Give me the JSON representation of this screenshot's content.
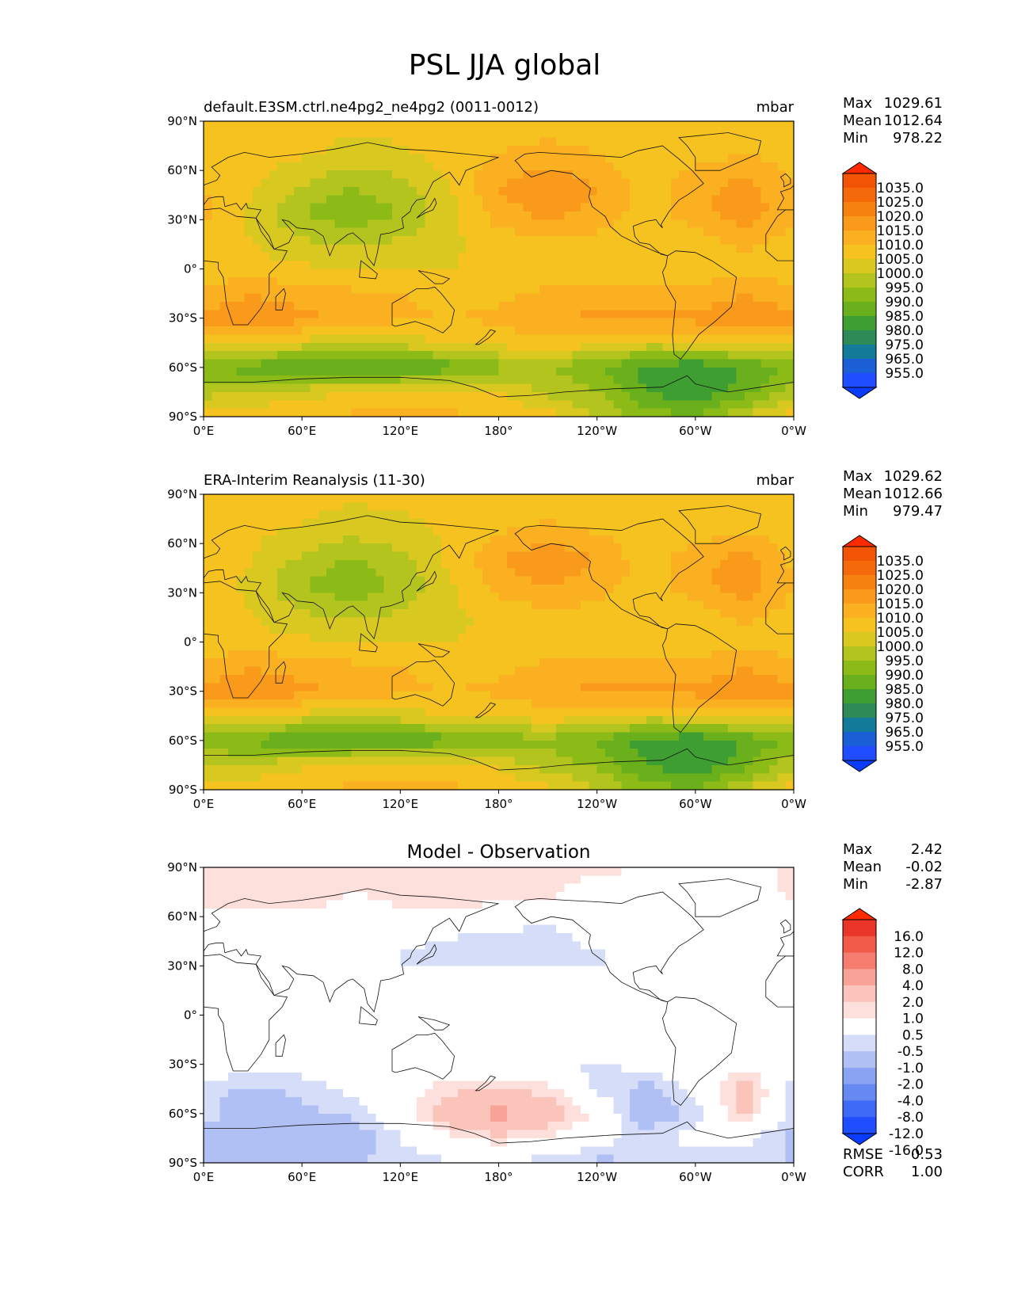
{
  "title": "PSL JJA global",
  "colors": {
    "field_levels": [
      "#1f4dff",
      "#1a5fd6",
      "#147a9a",
      "#2e8a56",
      "#3f9e32",
      "#6aaf1c",
      "#8cbb18",
      "#b3c41e",
      "#d8c820",
      "#f5c21f",
      "#fbb021",
      "#f99a1a",
      "#f7810f",
      "#f46a0b",
      "#f25406"
    ],
    "field_extend_low": "#0a3cff",
    "field_extend_high": "#ff2a00",
    "diff_levels": [
      "#1f4dff",
      "#3f6af7",
      "#6588f1",
      "#8aa3f3",
      "#b0c0f5",
      "#d5ddf8",
      "#ffffff",
      "#fde0dc",
      "#fbc4bb",
      "#f8a398",
      "#f47d70",
      "#f05a49",
      "#e9352a"
    ],
    "diff_extend_low": "#0a3cff",
    "diff_extend_high": "#ff2a00",
    "coastline": "#111111"
  },
  "axes": {
    "lat_ticks": [
      "90°N",
      "60°N",
      "30°N",
      "0°",
      "30°S",
      "60°S",
      "90°S"
    ],
    "lon_ticks": [
      "0°E",
      "60°E",
      "120°E",
      "180°",
      "120°W",
      "60°W",
      "0°W"
    ]
  },
  "panels": [
    {
      "id": "model",
      "title_left": "default.E3SM.ctrl.ne4pg2_ne4pg2 (0011-0012)",
      "title_center": "",
      "units": "mbar",
      "stats": [
        {
          "label": "Max",
          "value": "1029.61"
        },
        {
          "label": "Mean",
          "value": "1012.64"
        },
        {
          "label": "Min",
          "value": "978.22"
        }
      ],
      "colorbar_labels": [
        "1035.0",
        "1025.0",
        "1020.0",
        "1015.0",
        "1010.0",
        "1005.0",
        "1000.0",
        "995.0",
        "990.0",
        "985.0",
        "980.0",
        "975.0",
        "965.0",
        "955.0"
      ],
      "extra_stats": []
    },
    {
      "id": "obs",
      "title_left": "ERA-Interim Reanalysis (11-30)",
      "title_center": "",
      "units": "mbar",
      "stats": [
        {
          "label": "Max",
          "value": "1029.62"
        },
        {
          "label": "Mean",
          "value": "1012.66"
        },
        {
          "label": "Min",
          "value": "979.47"
        }
      ],
      "colorbar_labels": [
        "1035.0",
        "1025.0",
        "1020.0",
        "1015.0",
        "1010.0",
        "1005.0",
        "1000.0",
        "995.0",
        "990.0",
        "985.0",
        "980.0",
        "975.0",
        "965.0",
        "955.0"
      ],
      "extra_stats": []
    },
    {
      "id": "diff",
      "title_left": "",
      "title_center": "Model - Observation",
      "units": "",
      "stats": [
        {
          "label": "Max",
          "value": "2.42"
        },
        {
          "label": "Mean",
          "value": "-0.02"
        },
        {
          "label": "Min",
          "value": "-2.87"
        }
      ],
      "colorbar_labels": [
        "16.0",
        "12.0",
        "8.0",
        "4.0",
        "2.0",
        "1.0",
        "0.5",
        "-0.5",
        "-1.0",
        "-2.0",
        "-4.0",
        "-8.0",
        "-12.0",
        "-16.0"
      ],
      "extra_stats": [
        {
          "label": "RMSE",
          "value": "0.53"
        },
        {
          "label": "CORR",
          "value": "1.00"
        }
      ]
    }
  ],
  "chart_data": [
    {
      "type": "heatmap",
      "title": "default.E3SM.ctrl.ne4pg2_ne4pg2 (0011-0012)",
      "variable": "PSL JJA global",
      "units": "mbar",
      "x_range": [
        0,
        360
      ],
      "y_range": [
        -90,
        90
      ],
      "levels": [
        955,
        965,
        975,
        980,
        985,
        990,
        995,
        1000,
        1005,
        1010,
        1015,
        1020,
        1025,
        1035
      ],
      "field_lat": [
        90,
        70,
        50,
        35,
        15,
        0,
        -15,
        -30,
        -45,
        -60,
        -75,
        -90
      ],
      "field_lon": [
        0,
        30,
        60,
        90,
        120,
        150,
        180,
        210,
        240,
        270,
        300,
        330,
        360
      ],
      "field": [
        [
          1012,
          1012,
          1012,
          1012,
          1012,
          1012,
          1012,
          1012,
          1012,
          1012,
          1012,
          1012,
          1012
        ],
        [
          1013,
          1012,
          1011,
          1008,
          1009,
          1012,
          1015,
          1017,
          1015,
          1012,
          1013,
          1015,
          1013
        ],
        [
          1015,
          1011,
          1005,
          1000,
          1003,
          1010,
          1020,
          1024,
          1020,
          1012,
          1018,
          1022,
          1015
        ],
        [
          1016,
          1008,
          1000,
          996,
          1000,
          1008,
          1018,
          1022,
          1018,
          1013,
          1018,
          1024,
          1016
        ],
        [
          1013,
          1010,
          1006,
          1004,
          1006,
          1009,
          1012,
          1014,
          1013,
          1011,
          1012,
          1016,
          1013
        ],
        [
          1012,
          1012,
          1011,
          1010,
          1010,
          1010,
          1011,
          1012,
          1012,
          1011,
          1012,
          1014,
          1012
        ],
        [
          1016,
          1020,
          1017,
          1016,
          1015,
          1013,
          1014,
          1016,
          1018,
          1018,
          1016,
          1020,
          1016
        ],
        [
          1022,
          1024,
          1022,
          1018,
          1016,
          1015,
          1016,
          1019,
          1021,
          1022,
          1022,
          1024,
          1022
        ],
        [
          1012,
          1012,
          1008,
          1006,
          1008,
          1010,
          1012,
          1014,
          1012,
          1008,
          1010,
          1012,
          1012
        ],
        [
          996,
          992,
          989,
          988,
          988,
          992,
          998,
          1000,
          995,
          988,
          985,
          990,
          996
        ],
        [
          1003,
          1005,
          1008,
          1010,
          1012,
          1012,
          1010,
          1004,
          1000,
          990,
          985,
          993,
          1003
        ],
        [
          1013,
          1013,
          1015,
          1016,
          1017,
          1016,
          1014,
          1012,
          1005,
          998,
          995,
          1005,
          1013
        ]
      ],
      "stats": {
        "max": 1029.61,
        "mean": 1012.64,
        "min": 978.22
      }
    },
    {
      "type": "heatmap",
      "title": "ERA-Interim Reanalysis (11-30)",
      "variable": "PSL JJA global",
      "units": "mbar",
      "x_range": [
        0,
        360
      ],
      "y_range": [
        -90,
        90
      ],
      "levels": [
        955,
        965,
        975,
        980,
        985,
        990,
        995,
        1000,
        1005,
        1010,
        1015,
        1020,
        1025,
        1035
      ],
      "field_lat": [
        90,
        70,
        50,
        35,
        15,
        0,
        -15,
        -30,
        -45,
        -60,
        -75,
        -90
      ],
      "field_lon": [
        0,
        30,
        60,
        90,
        120,
        150,
        180,
        210,
        240,
        270,
        300,
        330,
        360
      ],
      "field": [
        [
          1011,
          1011,
          1011,
          1011,
          1011,
          1011,
          1011,
          1011,
          1011,
          1011,
          1011,
          1011,
          1011
        ],
        [
          1012,
          1011,
          1010,
          1008,
          1009,
          1011,
          1014,
          1016,
          1014,
          1011,
          1012,
          1014,
          1012
        ],
        [
          1014,
          1010,
          1004,
          999,
          1003,
          1011,
          1020,
          1024,
          1020,
          1012,
          1018,
          1022,
          1014
        ],
        [
          1015,
          1008,
          1000,
          996,
          1001,
          1009,
          1017,
          1021,
          1017,
          1013,
          1018,
          1024,
          1015
        ],
        [
          1013,
          1010,
          1006,
          1004,
          1006,
          1009,
          1011,
          1013,
          1013,
          1011,
          1012,
          1016,
          1013
        ],
        [
          1012,
          1012,
          1011,
          1010,
          1010,
          1010,
          1011,
          1012,
          1012,
          1011,
          1012,
          1014,
          1012
        ],
        [
          1016,
          1020,
          1017,
          1016,
          1015,
          1013,
          1014,
          1016,
          1018,
          1018,
          1016,
          1020,
          1016
        ],
        [
          1022,
          1024,
          1022,
          1018,
          1016,
          1015,
          1016,
          1019,
          1021,
          1022,
          1022,
          1024,
          1022
        ],
        [
          1012,
          1012,
          1008,
          1006,
          1008,
          1010,
          1011,
          1013,
          1012,
          1008,
          1010,
          1012,
          1012
        ],
        [
          997,
          993,
          990,
          989,
          989,
          993,
          997,
          998,
          994,
          988,
          985,
          990,
          997
        ],
        [
          1004,
          1006,
          1009,
          1011,
          1012,
          1012,
          1009,
          1003,
          999,
          990,
          985,
          993,
          1004
        ],
        [
          1013,
          1013,
          1015,
          1016,
          1017,
          1016,
          1014,
          1012,
          1005,
          998,
          995,
          1005,
          1013
        ]
      ],
      "stats": {
        "max": 1029.62,
        "mean": 1012.66,
        "min": 979.47
      }
    },
    {
      "type": "heatmap",
      "title": "Model - Observation",
      "variable": "PSL JJA global",
      "units": "mbar",
      "x_range": [
        0,
        360
      ],
      "y_range": [
        -90,
        90
      ],
      "levels": [
        -16,
        -12,
        -8,
        -4,
        -2,
        -1,
        -0.5,
        0.5,
        1,
        2,
        4,
        8,
        12,
        16
      ],
      "field_lat": [
        90,
        70,
        50,
        35,
        15,
        0,
        -15,
        -30,
        -45,
        -60,
        -75,
        -90
      ],
      "field_lon": [
        0,
        30,
        60,
        90,
        120,
        150,
        180,
        210,
        240,
        270,
        300,
        330,
        360
      ],
      "field": [
        [
          0.7,
          0.7,
          0.8,
          0.8,
          0.8,
          0.8,
          0.8,
          0.7,
          0.6,
          0.5,
          0.3,
          0.2,
          0.7
        ],
        [
          0.6,
          0.6,
          0.8,
          0.4,
          0.6,
          0.8,
          0.6,
          0.5,
          0.2,
          0,
          0.1,
          0.1,
          0.6
        ],
        [
          0,
          0,
          0,
          0,
          0,
          -0.4,
          -0.6,
          -0.7,
          -0.2,
          0,
          0,
          0,
          0
        ],
        [
          0.1,
          0.6,
          0,
          0,
          -0.6,
          -0.9,
          -0.8,
          -0.7,
          -0.6,
          -0.3,
          0,
          0,
          0.1
        ],
        [
          0,
          0,
          0,
          0,
          0,
          0.3,
          0.6,
          0,
          0,
          0,
          0,
          0,
          0
        ],
        [
          0,
          0.5,
          0,
          0,
          0,
          0,
          0,
          0,
          0,
          0,
          0,
          0,
          0
        ],
        [
          0,
          0,
          0,
          0,
          0,
          0,
          0,
          0.6,
          0,
          0,
          0,
          0,
          0
        ],
        [
          0,
          0,
          -0.2,
          -0.2,
          0,
          0,
          -0.3,
          -0.4,
          -0.6,
          -0.2,
          0,
          0.3,
          0
        ],
        [
          -0.8,
          -1.2,
          -0.8,
          -0.3,
          0,
          0.8,
          1.0,
          0.7,
          -0.6,
          -1.3,
          -0.3,
          1.5,
          -0.8
        ],
        [
          -0.8,
          -1.4,
          -1.2,
          -0.9,
          0,
          1.6,
          2.4,
          1.6,
          0.3,
          -1.6,
          -0.8,
          1.2,
          -0.8
        ],
        [
          -1.2,
          -1.0,
          -1.3,
          -1.6,
          -0.5,
          0.3,
          0.8,
          0.5,
          -0.2,
          -0.7,
          -0.3,
          -0.3,
          -1.2
        ],
        [
          -1.0,
          -1.0,
          -1.0,
          -1.0,
          -0.8,
          -0.6,
          -0.6,
          -0.8,
          -1.2,
          -1.0,
          -0.9,
          -0.8,
          -1.0
        ]
      ],
      "stats": {
        "max": 2.42,
        "mean": -0.02,
        "min": -2.87,
        "rmse": 0.53,
        "corr": 1.0
      }
    }
  ]
}
